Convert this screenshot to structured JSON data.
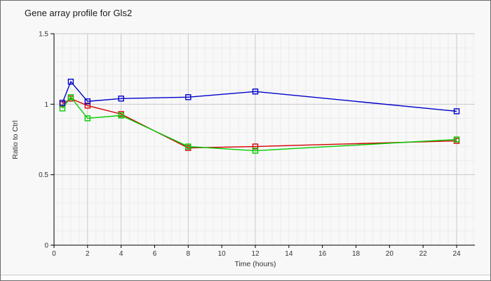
{
  "window": {
    "background": "#f8f8f8",
    "border_color": "#6b6b6b"
  },
  "chart_data": {
    "type": "line",
    "title": "Gene array profile for Gls2",
    "xlabel": "Time (hours)",
    "ylabel": "Ratio to Ctrl",
    "xlim": [
      0,
      24
    ],
    "ylim": [
      0,
      1.5
    ],
    "x_ticks": [
      0,
      2,
      4,
      6,
      8,
      10,
      12,
      14,
      16,
      18,
      20,
      22,
      24
    ],
    "y_tick_values": [
      0,
      0.5,
      1,
      1.5
    ],
    "y_tick_labels": [
      "0",
      "0.5",
      "1",
      "1.5"
    ],
    "x_minor_step": 0.5,
    "y_minor_step": 0.1,
    "emphasized_x_gridlines": [
      2,
      4,
      8,
      12,
      24
    ],
    "grid": "on",
    "legend": "none",
    "marker": "open-square",
    "x": [
      0.5,
      1,
      2,
      4,
      8,
      12,
      24
    ],
    "series": [
      {
        "name": "series-red",
        "color": "#d40000",
        "values": [
          1.0,
          1.04,
          0.99,
          0.93,
          0.69,
          0.7,
          0.74
        ]
      },
      {
        "name": "series-green",
        "color": "#00cc00",
        "values": [
          0.97,
          1.05,
          0.9,
          0.92,
          0.7,
          0.67,
          0.75
        ]
      },
      {
        "name": "series-blue",
        "color": "#0000cc",
        "values": [
          1.01,
          1.16,
          1.02,
          1.04,
          1.05,
          1.09,
          0.95
        ]
      }
    ],
    "colors": {
      "axis": "#000000",
      "tick_text": "#333333",
      "grid_minor": "#ececec",
      "grid_major": "#c8c8c8"
    }
  }
}
